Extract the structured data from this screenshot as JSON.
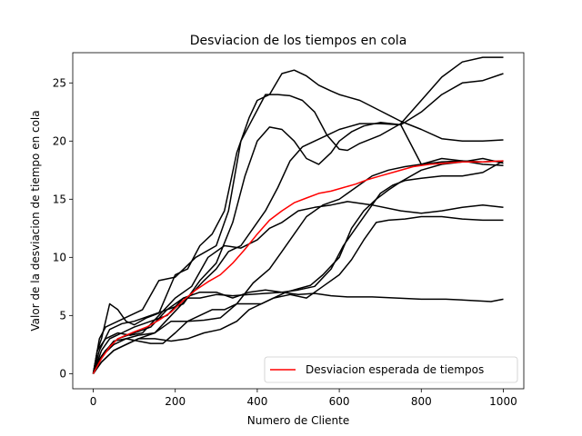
{
  "chart_data": {
    "type": "line",
    "title": "Desviacion de los tiempos en cola",
    "xlabel": "Numero de Cliente",
    "ylabel": "Valor de la desviacion de tiempo en cola",
    "xlim": [
      -50,
      1050
    ],
    "ylim": [
      -1.3,
      27.6
    ],
    "xticks": [
      0,
      200,
      400,
      600,
      800,
      1000
    ],
    "yticks": [
      0,
      5,
      10,
      15,
      20,
      25
    ],
    "grid": false,
    "legend_position": "lower-right",
    "series": [
      {
        "color": "#000000",
        "points": [
          [
            0,
            0
          ],
          [
            10,
            2
          ],
          [
            20,
            3
          ],
          [
            40,
            6
          ],
          [
            60,
            5.5
          ],
          [
            80,
            4.5
          ],
          [
            100,
            4.2
          ],
          [
            130,
            4.8
          ],
          [
            160,
            5.2
          ],
          [
            200,
            8.5
          ],
          [
            230,
            9
          ],
          [
            260,
            11
          ],
          [
            290,
            12
          ],
          [
            320,
            14
          ],
          [
            350,
            19
          ],
          [
            380,
            22
          ],
          [
            400,
            23.5
          ],
          [
            430,
            24
          ],
          [
            460,
            25.8
          ],
          [
            490,
            26.1
          ],
          [
            520,
            25.6
          ],
          [
            550,
            24.8
          ],
          [
            580,
            24.3
          ],
          [
            600,
            24
          ],
          [
            650,
            23.5
          ],
          [
            700,
            22.6
          ],
          [
            750,
            21.7
          ],
          [
            800,
            21
          ],
          [
            850,
            20.2
          ],
          [
            900,
            20
          ],
          [
            950,
            20
          ],
          [
            1000,
            20.1
          ]
        ]
      },
      {
        "color": "#000000",
        "points": [
          [
            0,
            0
          ],
          [
            15,
            3
          ],
          [
            30,
            4
          ],
          [
            60,
            4.5
          ],
          [
            90,
            5
          ],
          [
            120,
            5.5
          ],
          [
            160,
            8
          ],
          [
            200,
            8.3
          ],
          [
            250,
            10
          ],
          [
            300,
            11
          ],
          [
            330,
            14
          ],
          [
            360,
            20
          ],
          [
            390,
            22
          ],
          [
            420,
            24
          ],
          [
            450,
            24
          ],
          [
            480,
            23.9
          ],
          [
            510,
            23.5
          ],
          [
            540,
            22.5
          ],
          [
            570,
            20.5
          ],
          [
            600,
            19.3
          ],
          [
            620,
            19.2
          ],
          [
            650,
            19.8
          ],
          [
            700,
            20.5
          ],
          [
            750,
            21.5
          ],
          [
            800,
            23.5
          ],
          [
            850,
            25.5
          ],
          [
            900,
            26.8
          ],
          [
            950,
            27.2
          ],
          [
            1000,
            27.2
          ]
        ]
      },
      {
        "color": "#000000",
        "points": [
          [
            0,
            0
          ],
          [
            10,
            1
          ],
          [
            30,
            2
          ],
          [
            60,
            3
          ],
          [
            100,
            3.5
          ],
          [
            140,
            4
          ],
          [
            180,
            5.5
          ],
          [
            220,
            6
          ],
          [
            260,
            8
          ],
          [
            300,
            9.5
          ],
          [
            340,
            13
          ],
          [
            370,
            17
          ],
          [
            400,
            20
          ],
          [
            430,
            21.2
          ],
          [
            460,
            21
          ],
          [
            490,
            20
          ],
          [
            520,
            18.5
          ],
          [
            550,
            18
          ],
          [
            580,
            19
          ],
          [
            600,
            20
          ],
          [
            630,
            20.8
          ],
          [
            660,
            21.3
          ],
          [
            700,
            21.6
          ],
          [
            750,
            21.4
          ],
          [
            800,
            22.5
          ],
          [
            850,
            24
          ],
          [
            900,
            25
          ],
          [
            950,
            25.2
          ],
          [
            1000,
            25.8
          ]
        ]
      },
      {
        "color": "#000000",
        "points": [
          [
            0,
            0
          ],
          [
            20,
            1.5
          ],
          [
            50,
            2.5
          ],
          [
            80,
            3
          ],
          [
            110,
            3.3
          ],
          [
            150,
            3.5
          ],
          [
            190,
            5
          ],
          [
            230,
            6.5
          ],
          [
            270,
            8
          ],
          [
            300,
            9
          ],
          [
            330,
            10.5
          ],
          [
            360,
            11
          ],
          [
            390,
            12.5
          ],
          [
            420,
            14
          ],
          [
            450,
            16
          ],
          [
            480,
            18.3
          ],
          [
            510,
            19.5
          ],
          [
            540,
            20
          ],
          [
            570,
            20.5
          ],
          [
            600,
            21
          ],
          [
            650,
            21.5
          ],
          [
            700,
            21.5
          ],
          [
            750,
            21.4
          ],
          [
            800,
            18
          ],
          [
            850,
            18.5
          ],
          [
            900,
            18.3
          ],
          [
            950,
            18
          ],
          [
            1000,
            17.9
          ]
        ]
      },
      {
        "color": "#000000",
        "points": [
          [
            0,
            0
          ],
          [
            10,
            2
          ],
          [
            30,
            3
          ],
          [
            60,
            3.5
          ],
          [
            90,
            3.3
          ],
          [
            120,
            3.5
          ],
          [
            160,
            5
          ],
          [
            200,
            6.5
          ],
          [
            240,
            7.5
          ],
          [
            280,
            10
          ],
          [
            320,
            11
          ],
          [
            360,
            10.8
          ],
          [
            400,
            11.5
          ],
          [
            430,
            12.5
          ],
          [
            460,
            13
          ],
          [
            500,
            14
          ],
          [
            540,
            14.3
          ],
          [
            580,
            14.5
          ],
          [
            620,
            14.8
          ],
          [
            680,
            14.5
          ],
          [
            750,
            14
          ],
          [
            800,
            13.8
          ],
          [
            850,
            14
          ],
          [
            900,
            14.3
          ],
          [
            950,
            14.5
          ],
          [
            1000,
            14.3
          ]
        ]
      },
      {
        "color": "#000000",
        "points": [
          [
            0,
            0
          ],
          [
            20,
            2
          ],
          [
            40,
            3
          ],
          [
            70,
            3.5
          ],
          [
            100,
            4
          ],
          [
            140,
            4.5
          ],
          [
            180,
            5
          ],
          [
            220,
            6.5
          ],
          [
            260,
            7
          ],
          [
            300,
            7
          ],
          [
            340,
            6.5
          ],
          [
            380,
            7
          ],
          [
            420,
            7.2
          ],
          [
            460,
            7
          ],
          [
            500,
            6.8
          ],
          [
            540,
            6.9
          ],
          [
            580,
            6.7
          ],
          [
            620,
            6.6
          ],
          [
            680,
            6.6
          ],
          [
            740,
            6.5
          ],
          [
            800,
            6.4
          ],
          [
            860,
            6.4
          ],
          [
            920,
            6.3
          ],
          [
            970,
            6.2
          ],
          [
            1000,
            6.4
          ]
        ]
      },
      {
        "color": "#000000",
        "points": [
          [
            0,
            0
          ],
          [
            20,
            1
          ],
          [
            50,
            2
          ],
          [
            80,
            2.5
          ],
          [
            110,
            3
          ],
          [
            150,
            3.5
          ],
          [
            190,
            4.5
          ],
          [
            230,
            4.5
          ],
          [
            270,
            4.6
          ],
          [
            310,
            4.8
          ],
          [
            350,
            6
          ],
          [
            390,
            7.8
          ],
          [
            430,
            9
          ],
          [
            460,
            10.5
          ],
          [
            490,
            12
          ],
          [
            520,
            13.5
          ],
          [
            560,
            14.5
          ],
          [
            600,
            15
          ],
          [
            640,
            16
          ],
          [
            680,
            17
          ],
          [
            720,
            17.5
          ],
          [
            760,
            17.8
          ],
          [
            800,
            18
          ],
          [
            850,
            18.2
          ],
          [
            900,
            18.3
          ],
          [
            950,
            18.2
          ],
          [
            1000,
            18.3
          ]
        ]
      },
      {
        "color": "#000000",
        "points": [
          [
            0,
            0
          ],
          [
            20,
            1
          ],
          [
            50,
            2
          ],
          [
            80,
            2.5
          ],
          [
            110,
            3
          ],
          [
            150,
            3
          ],
          [
            190,
            2.8
          ],
          [
            230,
            3
          ],
          [
            270,
            3.5
          ],
          [
            310,
            3.8
          ],
          [
            350,
            4.5
          ],
          [
            380,
            5.5
          ],
          [
            410,
            6
          ],
          [
            440,
            6.5
          ],
          [
            470,
            7
          ],
          [
            500,
            7.3
          ],
          [
            530,
            7.6
          ],
          [
            560,
            8.5
          ],
          [
            600,
            10
          ],
          [
            630,
            12.5
          ],
          [
            660,
            14
          ],
          [
            690,
            15
          ],
          [
            720,
            15.8
          ],
          [
            750,
            16.5
          ],
          [
            800,
            17.5
          ],
          [
            850,
            18
          ],
          [
            900,
            18.2
          ],
          [
            950,
            18.5
          ],
          [
            1000,
            18.1
          ]
        ]
      },
      {
        "color": "#000000",
        "points": [
          [
            0,
            0
          ],
          [
            20,
            1.5
          ],
          [
            50,
            2.8
          ],
          [
            80,
            3
          ],
          [
            110,
            2.8
          ],
          [
            140,
            2.6
          ],
          [
            170,
            2.6
          ],
          [
            200,
            3.5
          ],
          [
            230,
            4.5
          ],
          [
            260,
            5
          ],
          [
            290,
            5.5
          ],
          [
            320,
            5.5
          ],
          [
            350,
            6
          ],
          [
            380,
            6
          ],
          [
            410,
            6
          ],
          [
            440,
            6.5
          ],
          [
            480,
            6.8
          ],
          [
            520,
            6.5
          ],
          [
            560,
            7.5
          ],
          [
            600,
            8.5
          ],
          [
            630,
            9.8
          ],
          [
            660,
            11.5
          ],
          [
            690,
            13
          ],
          [
            720,
            13.2
          ],
          [
            760,
            13.3
          ],
          [
            800,
            13.5
          ],
          [
            850,
            13.5
          ],
          [
            900,
            13.3
          ],
          [
            950,
            13.2
          ],
          [
            1000,
            13.2
          ]
        ]
      },
      {
        "color": "#000000",
        "points": [
          [
            0,
            0
          ],
          [
            15,
            2
          ],
          [
            40,
            3.8
          ],
          [
            70,
            4.3
          ],
          [
            100,
            4.5
          ],
          [
            140,
            5
          ],
          [
            180,
            5.5
          ],
          [
            220,
            6.5
          ],
          [
            260,
            6.5
          ],
          [
            300,
            6.8
          ],
          [
            340,
            6.7
          ],
          [
            380,
            6.8
          ],
          [
            420,
            6.9
          ],
          [
            460,
            7
          ],
          [
            500,
            7.2
          ],
          [
            540,
            7.5
          ],
          [
            580,
            9
          ],
          [
            610,
            11
          ],
          [
            640,
            12.5
          ],
          [
            670,
            14
          ],
          [
            700,
            15.5
          ],
          [
            730,
            16.2
          ],
          [
            760,
            16.6
          ],
          [
            800,
            16.8
          ],
          [
            850,
            17
          ],
          [
            900,
            17
          ],
          [
            950,
            17.3
          ],
          [
            1000,
            18.3
          ]
        ]
      },
      {
        "name": "Desviacion esperada de tiempos",
        "color": "#ff0000",
        "points": [
          [
            0,
            0
          ],
          [
            20,
            1.3
          ],
          [
            40,
            2.3
          ],
          [
            60,
            3
          ],
          [
            80,
            3.3
          ],
          [
            100,
            3.6
          ],
          [
            130,
            4
          ],
          [
            160,
            4.6
          ],
          [
            190,
            5.3
          ],
          [
            220,
            6.3
          ],
          [
            250,
            7.2
          ],
          [
            280,
            7.9
          ],
          [
            310,
            8.5
          ],
          [
            340,
            9.5
          ],
          [
            370,
            10.7
          ],
          [
            400,
            12
          ],
          [
            430,
            13.2
          ],
          [
            460,
            14
          ],
          [
            490,
            14.7
          ],
          [
            520,
            15.1
          ],
          [
            550,
            15.5
          ],
          [
            580,
            15.7
          ],
          [
            610,
            16
          ],
          [
            640,
            16.3
          ],
          [
            670,
            16.7
          ],
          [
            700,
            17
          ],
          [
            740,
            17.4
          ],
          [
            780,
            17.8
          ],
          [
            820,
            18
          ],
          [
            860,
            18.1
          ],
          [
            900,
            18.2
          ],
          [
            950,
            18.2
          ],
          [
            1000,
            18.3
          ]
        ]
      }
    ]
  }
}
